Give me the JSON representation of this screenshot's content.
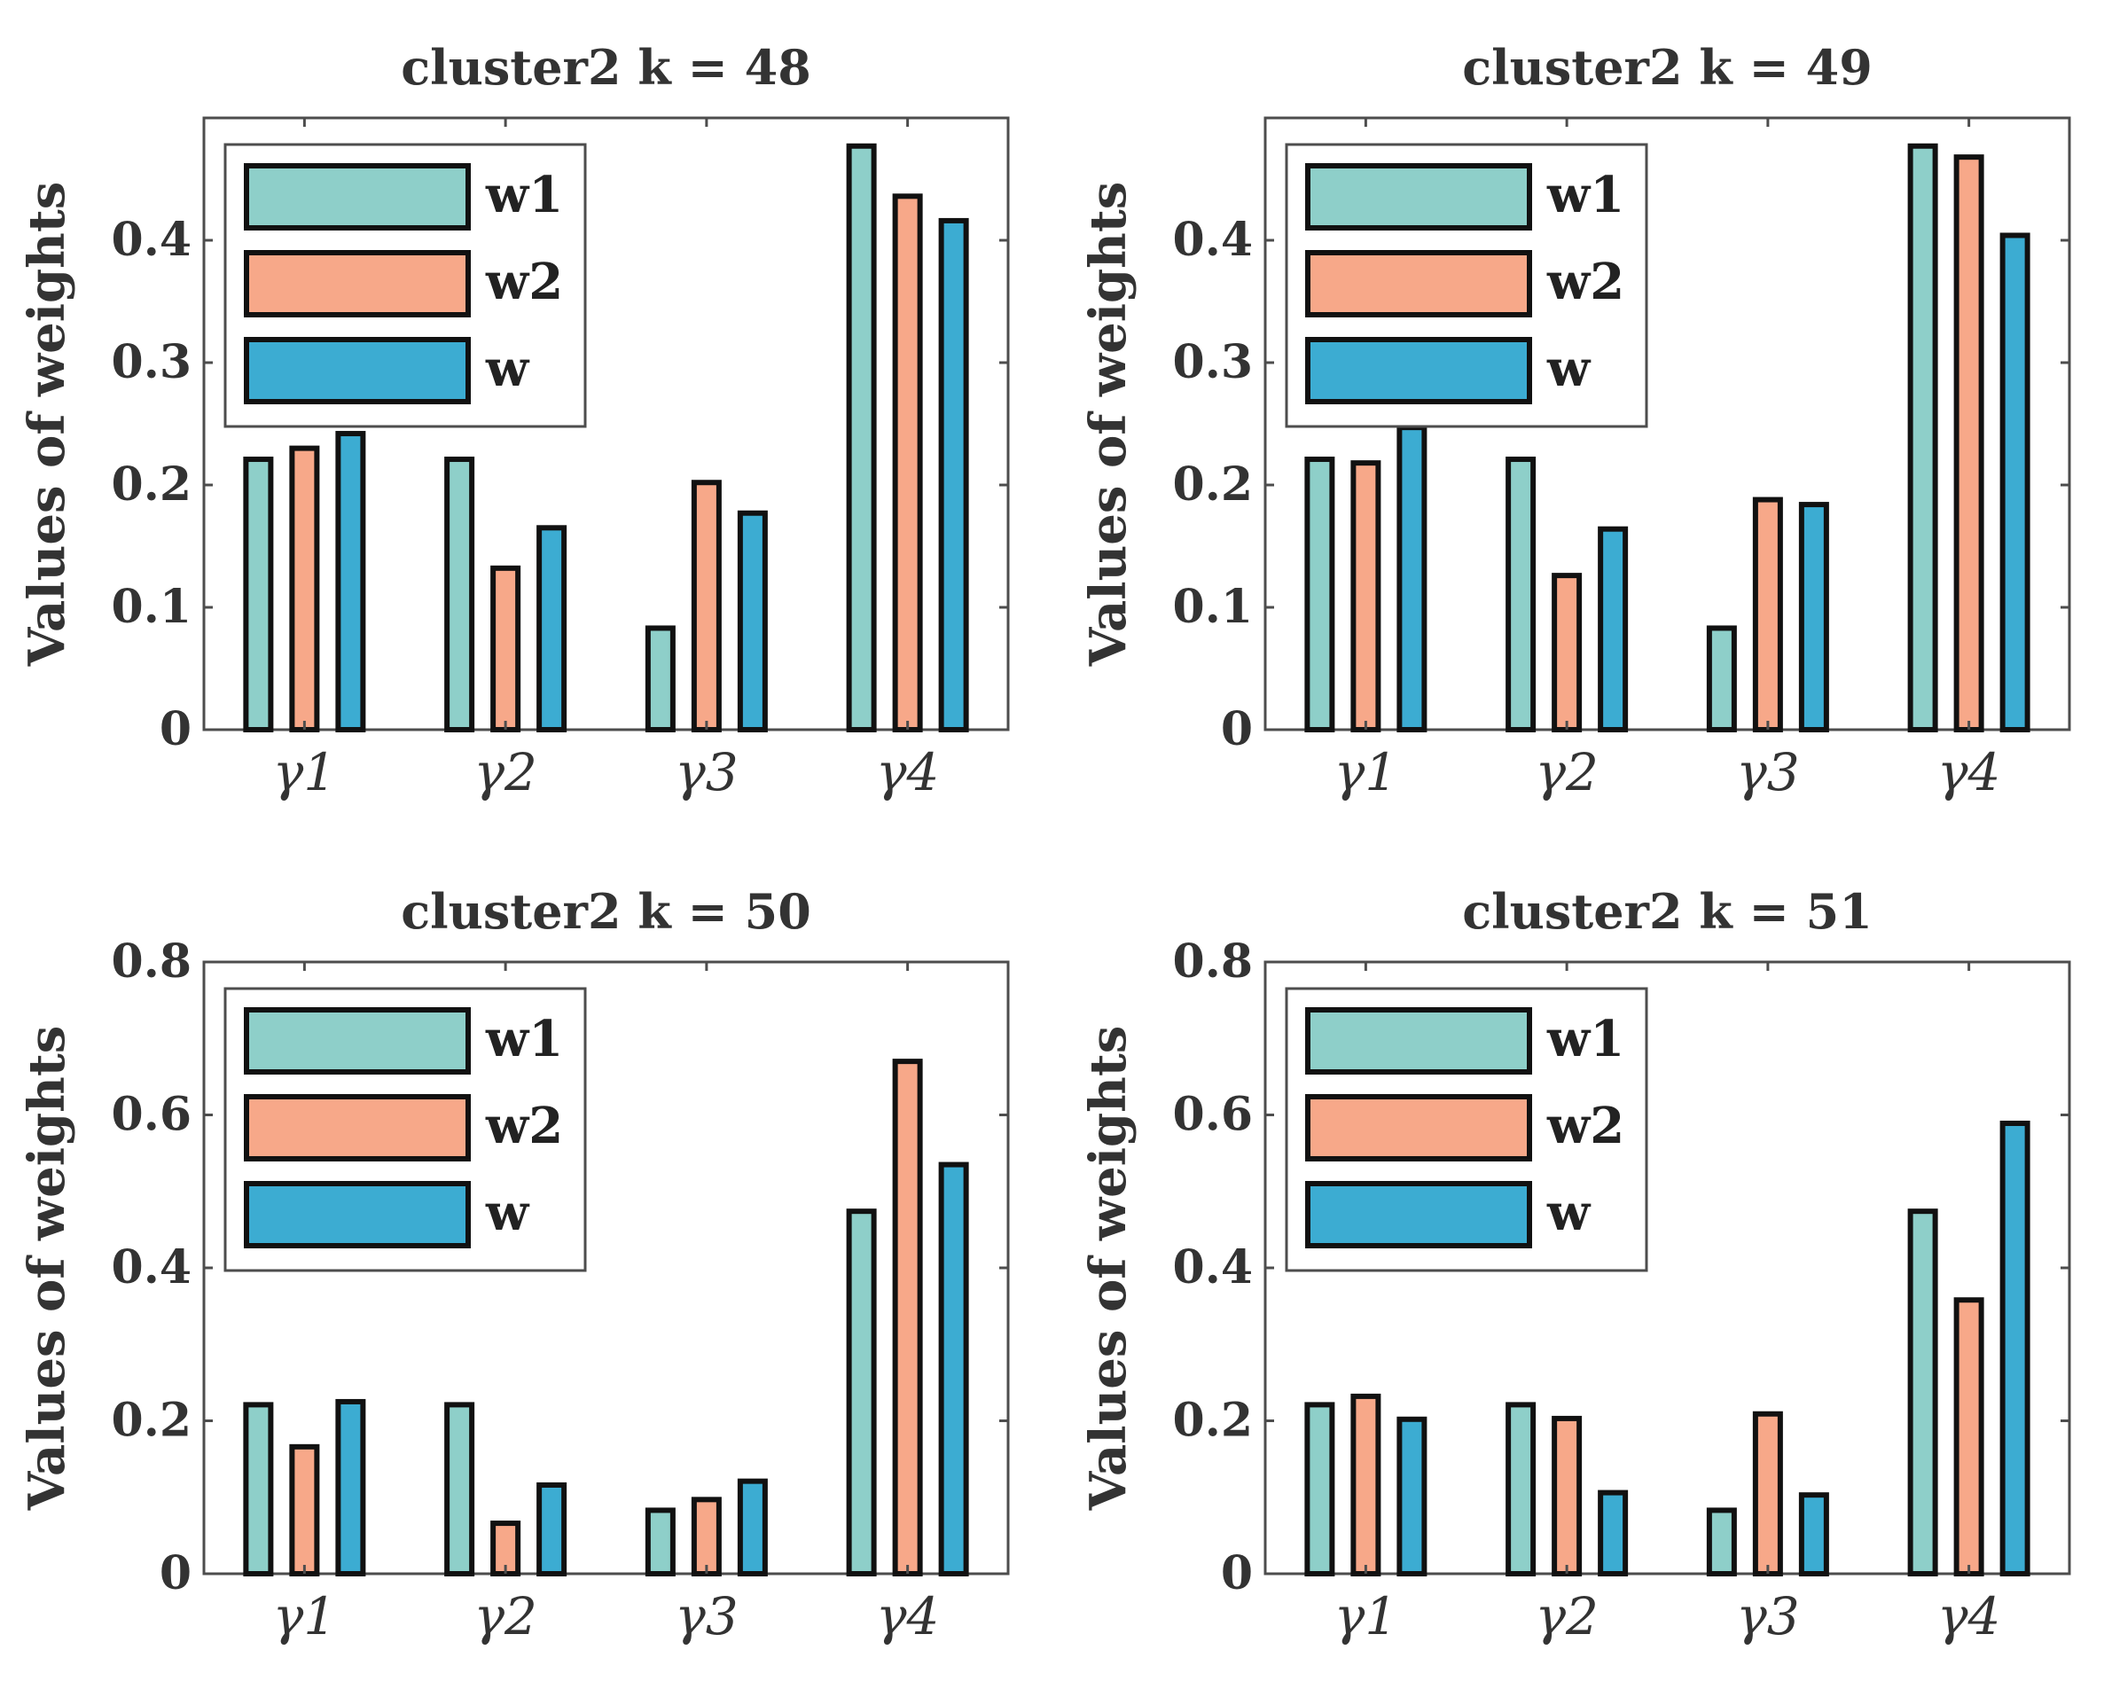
{
  "colors": {
    "w1": "#8ecfc9",
    "w2": "#f7a889",
    "w": "#3cacd2"
  },
  "chart_data": [
    {
      "type": "bar",
      "title": "cluster2  k = 48",
      "ylabel": "Values of weights",
      "xlabel": "",
      "categories": [
        "γ1",
        "γ2",
        "γ3",
        "γ4"
      ],
      "ylim": [
        0,
        0.5
      ],
      "yticks": [
        0,
        0.1,
        0.2,
        0.3,
        0.4
      ],
      "ytick_labels": [
        "0",
        "0.1",
        "0.2",
        "0.3",
        "0.4"
      ],
      "legend_position": "top-left",
      "series": [
        {
          "name": "w1",
          "values": [
            0.221,
            0.221,
            0.083,
            0.477
          ]
        },
        {
          "name": "w2",
          "values": [
            0.23,
            0.132,
            0.202,
            0.436
          ]
        },
        {
          "name": "w",
          "values": [
            0.242,
            0.165,
            0.177,
            0.416
          ]
        }
      ]
    },
    {
      "type": "bar",
      "title": "cluster2  k = 49",
      "ylabel": "Values of weights",
      "xlabel": "",
      "categories": [
        "γ1",
        "γ2",
        "γ3",
        "γ4"
      ],
      "ylim": [
        0,
        0.5
      ],
      "yticks": [
        0,
        0.1,
        0.2,
        0.3,
        0.4
      ],
      "ytick_labels": [
        "0",
        "0.1",
        "0.2",
        "0.3",
        "0.4"
      ],
      "legend_position": "top-left",
      "series": [
        {
          "name": "w1",
          "values": [
            0.221,
            0.221,
            0.083,
            0.477
          ]
        },
        {
          "name": "w2",
          "values": [
            0.218,
            0.126,
            0.188,
            0.468
          ]
        },
        {
          "name": "w",
          "values": [
            0.247,
            0.164,
            0.184,
            0.404
          ]
        }
      ]
    },
    {
      "type": "bar",
      "title": "cluster2  k = 50",
      "ylabel": "Values of weights",
      "xlabel": "",
      "categories": [
        "γ1",
        "γ2",
        "γ3",
        "γ4"
      ],
      "ylim": [
        0,
        0.8
      ],
      "yticks": [
        0,
        0.2,
        0.4,
        0.6,
        0.8
      ],
      "ytick_labels": [
        "0",
        "0.2",
        "0.4",
        "0.6",
        "0.8"
      ],
      "legend_position": "top-left",
      "series": [
        {
          "name": "w1",
          "values": [
            0.221,
            0.221,
            0.083,
            0.474
          ]
        },
        {
          "name": "w2",
          "values": [
            0.166,
            0.066,
            0.097,
            0.67
          ]
        },
        {
          "name": "w",
          "values": [
            0.225,
            0.116,
            0.121,
            0.535
          ]
        }
      ]
    },
    {
      "type": "bar",
      "title": "cluster2  k = 51",
      "ylabel": "Values of weights",
      "xlabel": "",
      "categories": [
        "γ1",
        "γ2",
        "γ3",
        "γ4"
      ],
      "ylim": [
        0,
        0.8
      ],
      "yticks": [
        0,
        0.2,
        0.4,
        0.6,
        0.8
      ],
      "ytick_labels": [
        "0",
        "0.2",
        "0.4",
        "0.6",
        "0.8"
      ],
      "legend_position": "top-left",
      "series": [
        {
          "name": "w1",
          "values": [
            0.221,
            0.221,
            0.083,
            0.474
          ]
        },
        {
          "name": "w2",
          "values": [
            0.232,
            0.203,
            0.209,
            0.358
          ]
        },
        {
          "name": "w",
          "values": [
            0.202,
            0.106,
            0.103,
            0.589
          ]
        }
      ]
    }
  ]
}
